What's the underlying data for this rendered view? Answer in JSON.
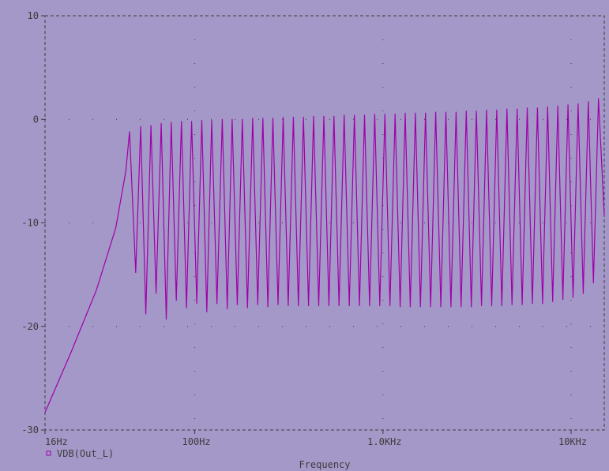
{
  "chart_data": {
    "type": "line",
    "title": "",
    "xlabel": "Frequency",
    "ylabel": "",
    "x_scale": "log",
    "xlim": [
      16,
      15000
    ],
    "ylim": [
      -30,
      10
    ],
    "x_ticks": [
      16,
      100,
      1000,
      10000
    ],
    "x_tick_labels": [
      "16Hz",
      "100Hz",
      "1.0KHz",
      "10KHz"
    ],
    "y_ticks": [
      10,
      0,
      -10,
      -20,
      -30
    ],
    "y_tick_labels": [
      "10",
      "0",
      "-10",
      "-20",
      "-30"
    ],
    "grid": "dotted",
    "legend_position": "bottom-left",
    "colors": {
      "background": "#a498c8",
      "trace": "#a000a8",
      "frame": "#3c3c3c"
    },
    "series": [
      {
        "name": "VDB(Out_L)",
        "x_hz": [
          16,
          22,
          30,
          38,
          43,
          45
        ],
        "y_db": [
          -28.3,
          -22.5,
          -16.5,
          -10.5,
          -5.0,
          -1.2
        ],
        "comb": {
          "peaks_hz": [
            45.6,
            51.6,
            58.5,
            66.3,
            75.0,
            84.9,
            96.2,
            109,
            123,
            140,
            158,
            179,
            203,
            230,
            260,
            295,
            334,
            378,
            428,
            485,
            549,
            622,
            705,
            798,
            904,
            1024,
            1160,
            1313,
            1487,
            1684,
            1907,
            2160,
            2446,
            2771,
            3138,
            3554,
            4025,
            4559,
            5163,
            5848,
            6623,
            7501,
            8496,
            9622,
            10898,
            12343,
            13980
          ],
          "peak_db": [
            -1.2,
            -0.7,
            -0.6,
            -0.4,
            -0.3,
            -0.2,
            -0.2,
            -0.1,
            -0.1,
            0.0,
            0.0,
            0.0,
            0.1,
            0.1,
            0.1,
            0.2,
            0.2,
            0.2,
            0.3,
            0.3,
            0.3,
            0.4,
            0.4,
            0.4,
            0.5,
            0.5,
            0.5,
            0.6,
            0.6,
            0.6,
            0.7,
            0.7,
            0.7,
            0.8,
            0.8,
            0.9,
            0.9,
            1.0,
            1.0,
            1.1,
            1.1,
            1.2,
            1.3,
            1.4,
            1.5,
            1.7,
            2.0
          ],
          "notch_db": [
            -14.8,
            -18.8,
            -16.8,
            -19.3,
            -17.5,
            -18.2,
            -17.8,
            -18.6,
            -17.8,
            -18.3,
            -17.9,
            -18.2,
            -17.9,
            -18.1,
            -17.9,
            -18.0,
            -18.0,
            -18.0,
            -18.0,
            -18.0,
            -18.0,
            -18.0,
            -18.0,
            -18.0,
            -18.0,
            -18.0,
            -18.1,
            -18.1,
            -18.1,
            -18.1,
            -18.1,
            -18.1,
            -18.1,
            -18.1,
            -18.0,
            -18.0,
            -18.0,
            -17.9,
            -17.9,
            -17.8,
            -17.8,
            -17.6,
            -17.4,
            -17.2,
            -16.8,
            -15.8
          ],
          "end": {
            "x_hz": 15000,
            "y_db": -9.3
          }
        }
      }
    ]
  }
}
